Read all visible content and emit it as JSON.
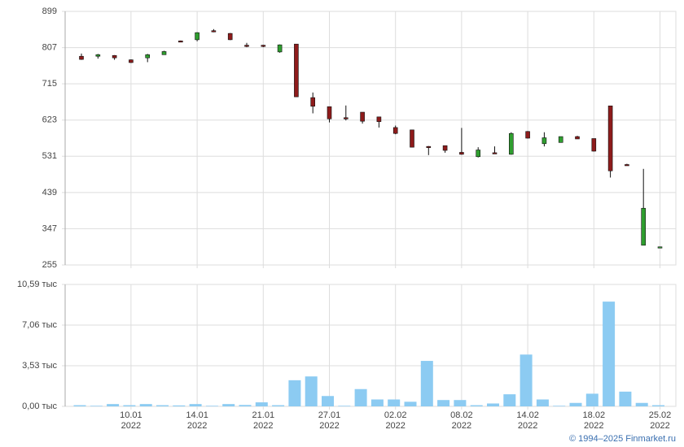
{
  "chart_data": [
    {
      "type": "candlestick",
      "open": [
        785,
        785,
        787,
        776,
        781,
        789,
        824,
        827,
        850,
        843,
        813,
        813,
        796,
        816,
        680,
        657,
        629,
        643,
        631,
        604,
        598,
        556,
        558,
        541,
        530,
        540,
        536,
        594,
        563,
        566,
        581,
        576,
        659,
        510,
        305,
        301
      ],
      "high": [
        792,
        791,
        788,
        777,
        791,
        799,
        825,
        846,
        854,
        844,
        819,
        814,
        815,
        816,
        693,
        657,
        660,
        643,
        631,
        609,
        598,
        557,
        558,
        603,
        554,
        556,
        592,
        595,
        592,
        581,
        583,
        576,
        659,
        512,
        499,
        301
      ],
      "low": [
        776,
        779,
        776,
        768,
        770,
        789,
        821,
        823,
        846,
        826,
        808,
        808,
        794,
        682,
        640,
        617,
        622,
        614,
        604,
        587,
        554,
        534,
        540,
        535,
        528,
        538,
        535,
        576,
        556,
        566,
        575,
        543,
        477,
        507,
        305,
        301
      ],
      "close": [
        777,
        789,
        781,
        769,
        789,
        797,
        821,
        845,
        847,
        827,
        812,
        810,
        814,
        682,
        658,
        626,
        626,
        620,
        619,
        589,
        554,
        555,
        546,
        536,
        547,
        539,
        589,
        577,
        578,
        581,
        575,
        544,
        494,
        508,
        399,
        301
      ],
      "up_color": "#2f9e2f",
      "down_color": "#8e1b1b",
      "ylim": [
        255,
        899
      ],
      "yticks": [
        255,
        347,
        439,
        531,
        623,
        715,
        807,
        899
      ],
      "grid": true
    },
    {
      "type": "bar",
      "categories": [
        null,
        null,
        null,
        "10.01\n2022",
        null,
        null,
        null,
        "14.01\n2022",
        null,
        null,
        null,
        "21.01\n2022",
        null,
        null,
        null,
        "27.01\n2022",
        null,
        null,
        null,
        "02.02\n2022",
        null,
        null,
        null,
        "08.02\n2022",
        null,
        null,
        null,
        "14.02\n2022",
        null,
        null,
        null,
        "18.02\n2022",
        null,
        null,
        null,
        "25.02\n2022"
      ],
      "values": [
        0.1,
        0.05,
        0.2,
        0.1,
        0.2,
        0.1,
        0.08,
        0.2,
        0.05,
        0.2,
        0.12,
        0.35,
        0.1,
        2.27,
        2.6,
        0.9,
        0.05,
        1.5,
        0.6,
        0.6,
        0.4,
        3.95,
        0.55,
        0.55,
        0.1,
        0.25,
        1.05,
        4.5,
        0.6,
        0.05,
        0.3,
        1.1,
        9.1,
        1.28,
        0.3,
        0.1
      ],
      "color": "#8ccbf2",
      "ylim": [
        0,
        10.59
      ],
      "yticks": [
        {
          "value": 0,
          "label": "0,00 тыс"
        },
        {
          "value": 3.53,
          "label": "3,53 тыс"
        },
        {
          "value": 7.06,
          "label": "7,06 тыс"
        },
        {
          "value": 10.59,
          "label": "10,59 тыс"
        }
      ],
      "grid": true
    }
  ],
  "credit": "© 1994–2025 Finmarket.ru"
}
